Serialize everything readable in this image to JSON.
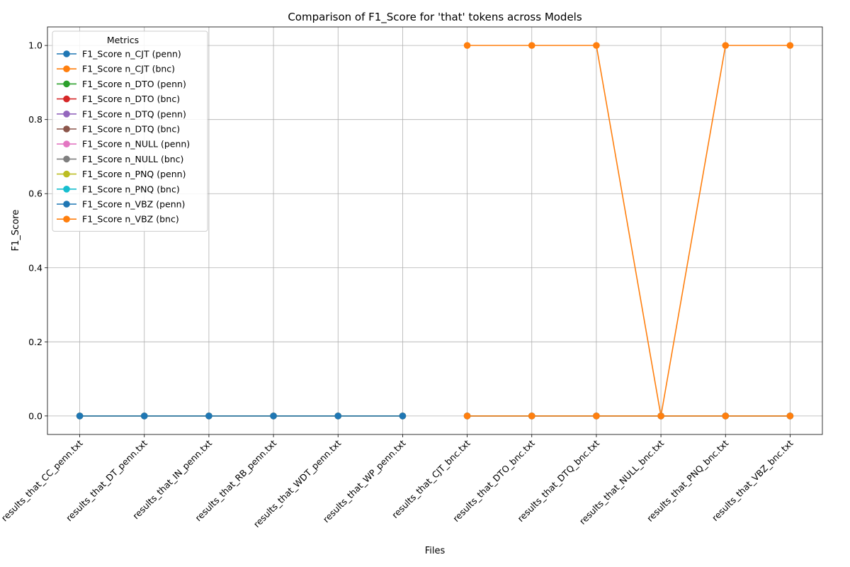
{
  "chart_data": {
    "type": "line",
    "title": "Comparison of F1_Score for 'that' tokens across Models",
    "xlabel": "Files",
    "ylabel": "F1_Score",
    "ylim": [
      -0.05,
      1.05
    ],
    "yticks": [
      0.0,
      0.2,
      0.4,
      0.6,
      0.8,
      1.0
    ],
    "grid": true,
    "legend_title": "Metrics",
    "legend_position": "top-left",
    "categories": [
      "results_that_CC_penn.txt",
      "results_that_DT_penn.txt",
      "results_that_IN_penn.txt",
      "results_that_RB_penn.txt",
      "results_that_WDT_penn.txt",
      "results_that_WP_penn.txt",
      "results_that_CJT_bnc.txt",
      "results_that_DTO_bnc.txt",
      "results_that_DTQ_bnc.txt",
      "results_that_NULL_bnc.txt",
      "results_that_PNQ_bnc.txt",
      "results_that_VBZ_bnc.txt"
    ],
    "series": [
      {
        "name": "F1_Score n_CJT (penn)",
        "color": "#1f77b4",
        "values": [
          0,
          0,
          0,
          0,
          0,
          0,
          null,
          null,
          null,
          null,
          null,
          null
        ]
      },
      {
        "name": "F1_Score n_CJT (bnc)",
        "color": "#ff7f0e",
        "values": [
          null,
          null,
          null,
          null,
          null,
          null,
          1,
          1,
          1,
          0,
          1,
          1
        ]
      },
      {
        "name": "F1_Score n_DTO (penn)",
        "color": "#2ca02c",
        "values": [
          0,
          0,
          0,
          0,
          0,
          0,
          null,
          null,
          null,
          null,
          null,
          null
        ]
      },
      {
        "name": "F1_Score n_DTO (bnc)",
        "color": "#d62728",
        "values": [
          null,
          null,
          null,
          null,
          null,
          null,
          0,
          0,
          0,
          0,
          0,
          0
        ]
      },
      {
        "name": "F1_Score n_DTQ (penn)",
        "color": "#9467bd",
        "values": [
          0,
          0,
          0,
          0,
          0,
          0,
          null,
          null,
          null,
          null,
          null,
          null
        ]
      },
      {
        "name": "F1_Score n_DTQ (bnc)",
        "color": "#8c564b",
        "values": [
          null,
          null,
          null,
          null,
          null,
          null,
          0,
          0,
          0,
          0,
          0,
          0
        ]
      },
      {
        "name": "F1_Score n_NULL (penn)",
        "color": "#e377c2",
        "values": [
          0,
          0,
          0,
          0,
          0,
          0,
          null,
          null,
          null,
          null,
          null,
          null
        ]
      },
      {
        "name": "F1_Score n_NULL (bnc)",
        "color": "#7f7f7f",
        "values": [
          null,
          null,
          null,
          null,
          null,
          null,
          0,
          0,
          0,
          0,
          0,
          0
        ]
      },
      {
        "name": "F1_Score n_PNQ (penn)",
        "color": "#bcbd22",
        "values": [
          0,
          0,
          0,
          0,
          0,
          0,
          null,
          null,
          null,
          null,
          null,
          null
        ]
      },
      {
        "name": "F1_Score n_PNQ (bnc)",
        "color": "#17becf",
        "values": [
          null,
          null,
          null,
          null,
          null,
          null,
          0,
          0,
          0,
          0,
          0,
          0
        ]
      },
      {
        "name": "F1_Score n_VBZ (penn)",
        "color": "#1f77b4",
        "values": [
          0,
          0,
          0,
          0,
          0,
          0,
          null,
          null,
          null,
          null,
          null,
          null
        ]
      },
      {
        "name": "F1_Score n_VBZ (bnc)",
        "color": "#ff7f0e",
        "values": [
          null,
          null,
          null,
          null,
          null,
          null,
          0,
          0,
          0,
          0,
          0,
          0
        ]
      }
    ]
  }
}
